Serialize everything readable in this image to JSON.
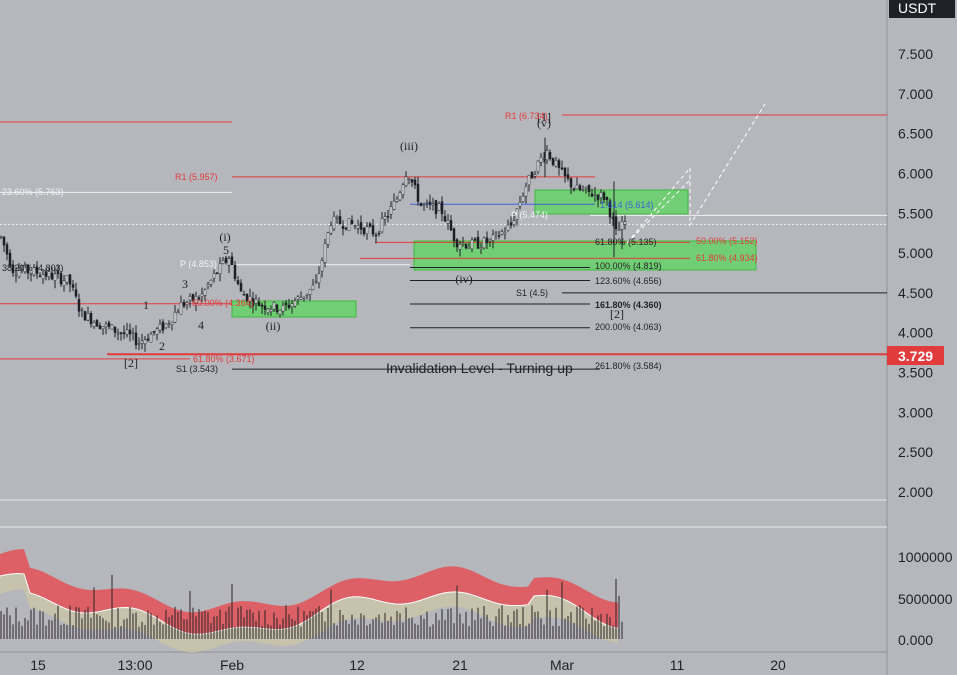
{
  "chart_data": {
    "type": "candlestick",
    "quote_currency": "USDT",
    "current_price": 3.729,
    "current_price_label": "3.729",
    "annotation": "Invalidation Level - Turning up",
    "y_axis": {
      "ticks": [
        "7.500",
        "7.000",
        "6.500",
        "6.000",
        "5.500",
        "5.000",
        "4.500",
        "4.000",
        "3.500",
        "3.000",
        "2.500",
        "2.000"
      ],
      "range": [
        1.85,
        8.1
      ]
    },
    "volume_axis": {
      "ticks": [
        "1000000",
        "5000000",
        "0.000"
      ]
    },
    "x_axis": {
      "ticks": [
        "15",
        "13:00",
        "Feb",
        "12",
        "21",
        "Mar",
        "11",
        "20"
      ]
    },
    "levels": [
      {
        "label": "R1 (6.734)",
        "price": 6.734,
        "color": "#e23b3b"
      },
      {
        "label": "R1 (5.957)",
        "price": 5.957,
        "color": "#e23b3b"
      },
      {
        "label": "23.60% (5.763)",
        "price": 5.763,
        "color": "#f2f2f2"
      },
      {
        "label": "P (5.474)",
        "price": 5.474,
        "color": "#f2f2f2"
      },
      {
        "label": "38.20% (4.803)",
        "price": 4.803,
        "color": "#1e2126"
      },
      {
        "label": "P (4.853)",
        "price": 4.853,
        "color": "#f2f2f2"
      },
      {
        "label": "50.00% (4.364)",
        "price": 4.364,
        "color": "#e23b3b"
      },
      {
        "label": "61.80% (3.671)",
        "price": 3.671,
        "color": "#e23b3b"
      },
      {
        "label": "S1 (3.543)",
        "price": 3.543,
        "color": "#1e2126"
      },
      {
        "label": "61.80% (5.135)",
        "price": 5.135,
        "color": "#1e2126"
      },
      {
        "label": "50.00% (5.152)",
        "price": 5.152,
        "color": "#e23b3b"
      },
      {
        "label": "61.80% (4.934)",
        "price": 4.934,
        "color": "#e23b3b"
      },
      {
        "label": "100.00% (4.819)",
        "price": 4.819,
        "color": "#1e2126"
      },
      {
        "label": "123.60% (4.656)",
        "price": 4.656,
        "color": "#1e2126"
      },
      {
        "label": "S1 (4.5)",
        "price": 4.5,
        "color": "#1e2126"
      },
      {
        "label": "161.80% (4.360)",
        "price": 4.36,
        "color": "#1e2126"
      },
      {
        "label": "200.00% (4.063)",
        "price": 4.063,
        "color": "#1e2126"
      },
      {
        "label": "261.80% (3.584)",
        "price": 3.584,
        "color": "#1e2126"
      },
      {
        "label": "1.614 (5.614)",
        "price": 5.614,
        "color": "#3b63d6"
      }
    ],
    "wave_labels": [
      "(i)",
      "(ii)",
      "(iii)",
      "(iv)",
      "(v)",
      "[1]",
      "[2]",
      "1",
      "2",
      "3",
      "4",
      "5"
    ],
    "colors": {
      "zone": "#5cd65c",
      "resistance": "#e23b3b",
      "volume_band": "#e0565b",
      "candles": "#1e2126"
    }
  }
}
